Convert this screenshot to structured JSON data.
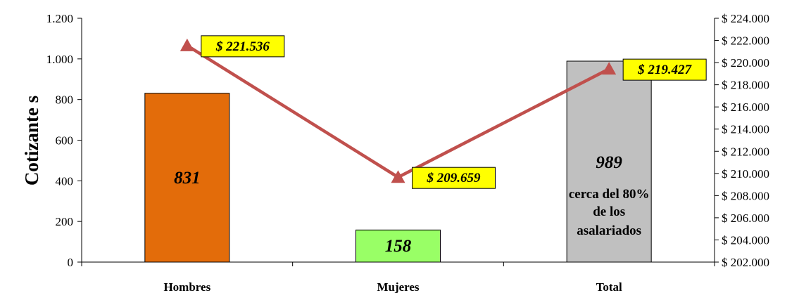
{
  "chart_data": {
    "type": "bar",
    "ylabel": "Cotizante s",
    "categories": [
      "Hombres",
      "Mujeres",
      "Total"
    ],
    "bar_series": {
      "values": [
        831,
        158,
        989
      ],
      "value_labels": [
        "831",
        "158",
        "989"
      ],
      "colors": [
        "#E36C0A",
        "#99FF66",
        "#C0C0C0"
      ]
    },
    "line_series": {
      "values": [
        221536,
        209659,
        219427
      ],
      "point_labels": [
        "$ 221.536",
        "$ 209.659",
        "$ 219.427"
      ],
      "color": "#C0504D",
      "label_bg": "#FFFF00"
    },
    "y_left": {
      "range": [
        0,
        1200
      ],
      "ticks": [
        0,
        200,
        400,
        600,
        800,
        1000,
        1200
      ],
      "tick_labels": [
        "0",
        "200",
        "400",
        "600",
        "800",
        "1.000",
        "1.200"
      ]
    },
    "y_right": {
      "range": [
        202000,
        224000
      ],
      "ticks": [
        202000,
        204000,
        206000,
        208000,
        210000,
        212000,
        214000,
        216000,
        218000,
        220000,
        222000,
        224000
      ],
      "tick_labels": [
        "$ 202.000",
        "$ 204.000",
        "$ 206.000",
        "$ 208.000",
        "$ 210.000",
        "$ 212.000",
        "$ 214.000",
        "$ 216.000",
        "$ 218.000",
        "$ 220.000",
        "$ 222.000",
        "$ 224.000"
      ]
    },
    "annotation_lines": [
      "cerca del 80%",
      "de los",
      "asalariados"
    ],
    "grid": false,
    "legend": "none"
  }
}
